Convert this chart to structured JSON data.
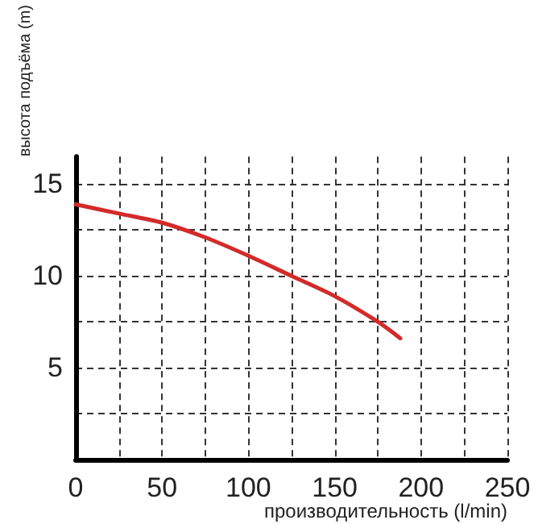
{
  "chart_data": {
    "type": "line",
    "xlabel": "производительность (l/min)",
    "ylabel": "высота подъёма (m)",
    "x": [
      0,
      25,
      50,
      75,
      100,
      125,
      150,
      175,
      188
    ],
    "series": [
      {
        "color": "#d42a2a",
        "values": [
          13.9,
          13.4,
          12.9,
          12.1,
          11.1,
          10.0,
          8.9,
          7.5,
          6.6
        ]
      }
    ],
    "xlim": [
      0,
      250
    ],
    "xticks": [
      0,
      {
        "value": 25,
        "label": null
      },
      50,
      {
        "value": 75,
        "label": null
      },
      100,
      {
        "value": 125,
        "label": null
      },
      150,
      {
        "value": 175,
        "label": null
      },
      200,
      {
        "value": 225,
        "label": null
      },
      250
    ],
    "ylim": [
      0,
      16.5
    ],
    "yticks": [
      {
        "value": 0,
        "label": null
      },
      {
        "value": 2.5,
        "label": null
      },
      5,
      {
        "value": 7.5,
        "label": null
      },
      10,
      {
        "value": 12.5,
        "label": null
      },
      15
    ],
    "grid": true,
    "marker": "none",
    "line_style": "solid"
  }
}
